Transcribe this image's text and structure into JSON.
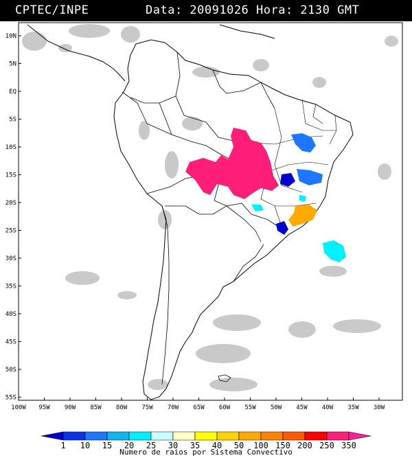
{
  "header": {
    "organization": "CPTEC/INPE",
    "datetime": "Data: 20091026 Hora: 2130 GMT"
  },
  "map": {
    "lat_labels": [
      "10N",
      "5N",
      "EQ",
      "5S",
      "10S",
      "15S",
      "20S",
      "25S",
      "30S",
      "35S",
      "40S",
      "45S",
      "50S",
      "55S"
    ],
    "lon_labels": [
      "100W",
      "95W",
      "90W",
      "85W",
      "80W",
      "75W",
      "70W",
      "65W",
      "60W",
      "55W",
      "50W",
      "45W",
      "40W",
      "35W",
      "30W"
    ]
  },
  "legend": {
    "title": "Numero de raios por Sistema Convectivo",
    "levels": [
      "1",
      "10",
      "15",
      "20",
      "25",
      "30",
      "35",
      "40",
      "50",
      "100",
      "150",
      "200",
      "250",
      "350"
    ],
    "colors": [
      "#0000cc",
      "#0a32e6",
      "#1e78ff",
      "#0fb4f0",
      "#00f0ff",
      "#c8ffff",
      "#ffffc8",
      "#ffff00",
      "#ffd200",
      "#ffaa00",
      "#ff8200",
      "#ff5a00",
      "#ff0000",
      "#ff1e78",
      "#ff1e96"
    ]
  },
  "systems": [
    {
      "name": "central-brazil",
      "color": "#ff1e78"
    },
    {
      "name": "northeast-1",
      "color": "#1e78ff"
    },
    {
      "name": "southeast-orange",
      "color": "#ffaa00"
    },
    {
      "name": "ocean-cyan",
      "color": "#00f0ff"
    }
  ]
}
